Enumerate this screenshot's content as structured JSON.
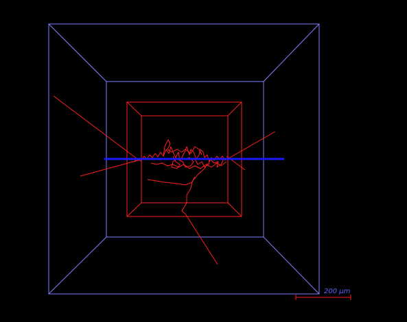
{
  "colors": {
    "background": "#000000",
    "outer_box": "#8080ff",
    "inner_box": "#ff2020",
    "neuron": "#ff2020",
    "axis_line": "#1a1aff",
    "scale_bar": "#ff2020",
    "scale_text": "#6060ff"
  },
  "scale_bar": {
    "label": "200 µm"
  }
}
